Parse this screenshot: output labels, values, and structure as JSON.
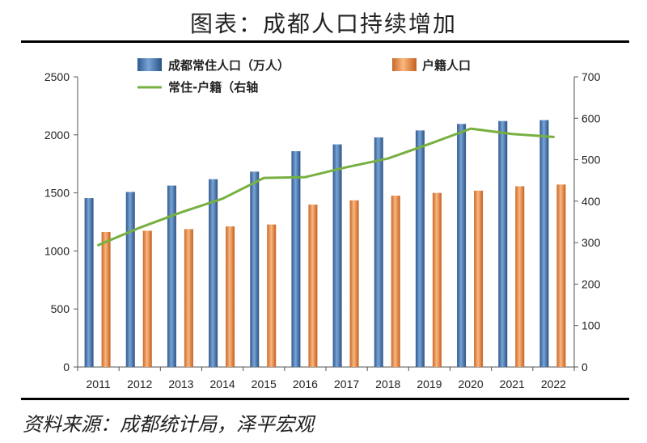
{
  "page": {
    "title": "图表：成都人口持续增加",
    "source": "资料来源：成都统计局，泽平宏观"
  },
  "chart_data": {
    "type": "bar",
    "categories": [
      "2011",
      "2012",
      "2013",
      "2014",
      "2015",
      "2016",
      "2017",
      "2018",
      "2019",
      "2020",
      "2021",
      "2022"
    ],
    "series": [
      {
        "name": "成都常住人口（万人）",
        "type": "bar",
        "axis": "left",
        "color": "#4f81bd",
        "values": [
          1455,
          1508,
          1563,
          1618,
          1683,
          1859,
          1918,
          1978,
          2038,
          2094,
          2119,
          2127
        ]
      },
      {
        "name": "户籍人口",
        "type": "bar",
        "axis": "left",
        "color": "#f79646",
        "values": [
          1163,
          1174,
          1188,
          1211,
          1228,
          1399,
          1436,
          1476,
          1500,
          1519,
          1557,
          1572
        ]
      },
      {
        "name": "常住-户籍（右轴",
        "type": "line",
        "axis": "right",
        "color": "#77b041",
        "values": [
          294,
          336,
          373,
          406,
          456,
          458,
          482,
          503,
          538,
          575,
          562,
          555
        ]
      }
    ],
    "left_axis": {
      "min": 0,
      "max": 2500,
      "step": 500,
      "ticks": [
        "0",
        "500",
        "1000",
        "1500",
        "2000",
        "2500"
      ]
    },
    "right_axis": {
      "min": 0,
      "max": 700,
      "step": 100,
      "ticks": [
        "0",
        "100",
        "200",
        "300",
        "400",
        "500",
        "600",
        "700"
      ]
    },
    "grid": false,
    "legend": "top"
  }
}
